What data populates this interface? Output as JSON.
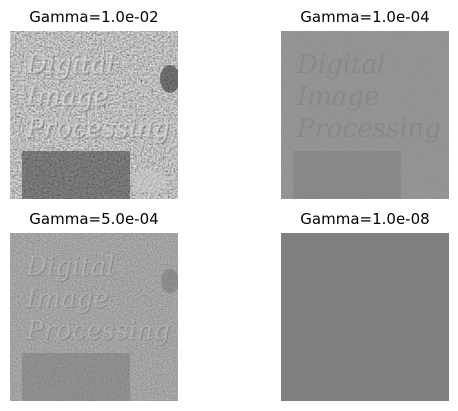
{
  "figure": {
    "panels": [
      {
        "title": "Gamma=1.0e-02",
        "contrast": "high",
        "base_tone": "#8c8c8c",
        "text_opacity": 0.55,
        "noise_strength": 1.0
      },
      {
        "title": "Gamma=1.0e-04",
        "contrast": "low",
        "base_tone": "#888888",
        "text_opacity": 0.18,
        "noise_strength": 0.35
      },
      {
        "title": "Gamma=5.0e-04",
        "contrast": "medium",
        "base_tone": "#8a8a8a",
        "text_opacity": 0.25,
        "noise_strength": 0.6
      },
      {
        "title": "Gamma=1.0e-08",
        "contrast": "flat",
        "base_tone": "#808080",
        "text_opacity": 0.0,
        "noise_strength": 0.0
      }
    ],
    "image_text": [
      "Digital",
      "Image",
      "Processing"
    ]
  }
}
